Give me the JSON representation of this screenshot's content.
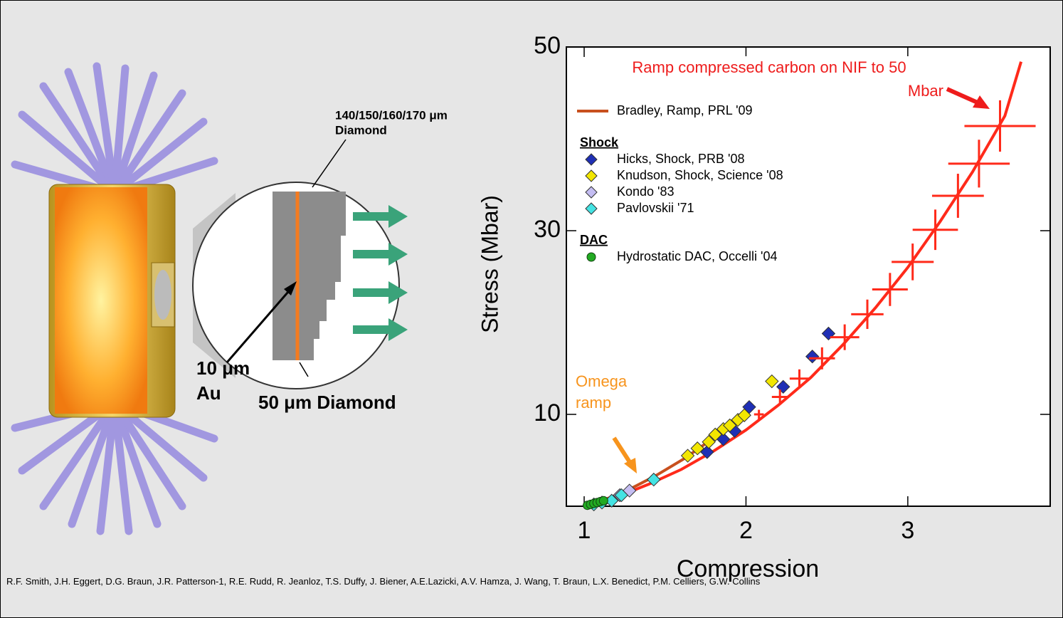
{
  "chart_data": {
    "type": "scatter",
    "ylabel": "Stress (Mbar)",
    "xlabel": "Compression",
    "xlim": [
      0.89,
      3.88
    ],
    "ylim": [
      0,
      50
    ],
    "xticks": [
      1,
      2,
      3
    ],
    "yticks": [
      10,
      30,
      50
    ],
    "annotations": [
      {
        "lines": [
          "Ramp compressed carbon on NIF to 50",
          "Mbar"
        ],
        "color": "#ee1c1c"
      },
      {
        "lines": [
          "Omega",
          "ramp"
        ],
        "color": "#f7941d"
      }
    ],
    "series": [
      {
        "name": "Bradley, Ramp, PRL '09",
        "style": "line",
        "color": "#c8501e",
        "x": [
          1.0,
          1.22,
          1.44,
          1.62,
          1.79,
          1.97
        ],
        "values": [
          0,
          1.3,
          3.3,
          5.2,
          7.3,
          9.4
        ]
      },
      {
        "name": "Hicks, Shock, PRB '08",
        "group": "Shock",
        "style": "diamond",
        "color": "#1f2fb5",
        "x": [
          1.76,
          1.86,
          1.93,
          2.02,
          2.23,
          2.41,
          2.51
        ],
        "values": [
          5.9,
          7.3,
          8.2,
          10.8,
          13.0,
          16.3,
          18.8
        ]
      },
      {
        "name": "Knudson, Shock, Science '08",
        "group": "Shock",
        "style": "diamond",
        "color": "#f2e600",
        "x": [
          1.64,
          1.7,
          1.77,
          1.81,
          1.86,
          1.9,
          1.95,
          1.99,
          2.16
        ],
        "values": [
          5.5,
          6.3,
          7.0,
          7.8,
          8.4,
          8.8,
          9.4,
          9.9,
          13.6
        ]
      },
      {
        "name": "Kondo '83",
        "group": "Shock",
        "style": "diamond",
        "color": "#c4bdf2",
        "x": [
          1.22,
          1.28
        ],
        "values": [
          1.2,
          1.7
        ]
      },
      {
        "name": "Pavlovskii '71",
        "group": "Shock",
        "style": "diamond",
        "color": "#44e3e3",
        "x": [
          1.06,
          1.11,
          1.17,
          1.23,
          1.43
        ],
        "values": [
          0.2,
          0.4,
          0.6,
          1.2,
          2.9
        ]
      },
      {
        "name": "Hydrostatic DAC, Occelli '04",
        "group": "DAC",
        "style": "circle",
        "color": "#22aa22",
        "x": [
          1.02,
          1.04,
          1.06,
          1.08,
          1.1,
          1.12
        ],
        "values": [
          0.1,
          0.2,
          0.3,
          0.4,
          0.5,
          0.6
        ]
      },
      {
        "style": "line",
        "color": "#ff2a1a",
        "x": [
          1.0,
          1.2,
          1.4,
          1.6,
          1.8,
          2.0,
          2.2,
          2.4,
          2.6,
          2.8,
          3.0,
          3.2,
          3.4,
          3.6,
          3.7
        ],
        "values": [
          0,
          1.0,
          2.4,
          4.0,
          6.0,
          8.3,
          11.0,
          14.0,
          17.6,
          21.6,
          26.0,
          31.0,
          36.4,
          42.5,
          48.4
        ]
      },
      {
        "style": "errorbar",
        "color": "#ff2a1a",
        "x": [
          2.08,
          2.21,
          2.33,
          2.47,
          2.61,
          2.75,
          2.89,
          3.03,
          3.17,
          3.31,
          3.44,
          3.57
        ],
        "values": [
          10,
          11.9,
          13.9,
          16.1,
          18.4,
          20.9,
          23.6,
          26.6,
          30.1,
          33.8,
          37.3,
          41.4
        ],
        "xerr": [
          0.03,
          0.05,
          0.06,
          0.08,
          0.09,
          0.1,
          0.11,
          0.13,
          0.14,
          0.16,
          0.19,
          0.22
        ],
        "yerr": [
          0.5,
          0.8,
          1,
          1.2,
          1.4,
          1.6,
          1.8,
          2,
          2.2,
          2.4,
          2.6,
          2.8
        ]
      }
    ]
  },
  "diagram": {
    "target_label": [
      "140/150/160/170 μm",
      "Diamond"
    ],
    "layer_label": [
      "10 μm",
      "Au"
    ],
    "base_label": "50 μm Diamond"
  },
  "footer": "R.F. Smith, J.H. Eggert, D.G. Braun, J.R. Patterson-1, R.E. Rudd, R. Jeanloz, T.S. Duffy, J. Biener, A.E.Lazicki, A.V. Hamza, J. Wang, T. Braun, L.X. Benedict, P.M. Celliers, G.W. Collins"
}
